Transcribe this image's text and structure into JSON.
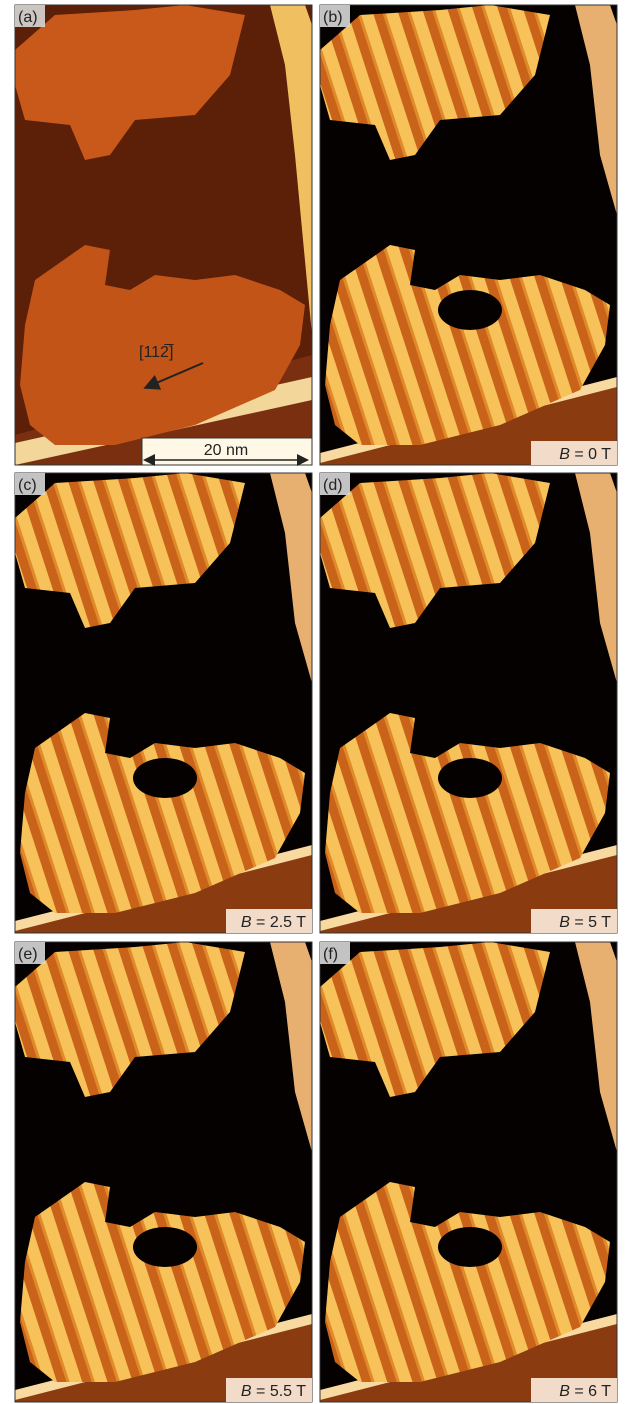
{
  "panels": [
    {
      "label": "(a)",
      "direction": "[112̅]",
      "scale_bar": "20 nm"
    },
    {
      "label": "(b)",
      "field": {
        "symbol": "B",
        "value": " = 0 T"
      }
    },
    {
      "label": "(c)",
      "field": {
        "symbol": "B",
        "value": " = 2.5 T"
      }
    },
    {
      "label": "(d)",
      "field": {
        "symbol": "B",
        "value": " = 5 T"
      }
    },
    {
      "label": "(e)",
      "field": {
        "symbol": "B",
        "value": " = 5.5 T"
      }
    },
    {
      "label": "(f)",
      "field": {
        "symbol": "B",
        "value": " = 6 T"
      }
    }
  ]
}
